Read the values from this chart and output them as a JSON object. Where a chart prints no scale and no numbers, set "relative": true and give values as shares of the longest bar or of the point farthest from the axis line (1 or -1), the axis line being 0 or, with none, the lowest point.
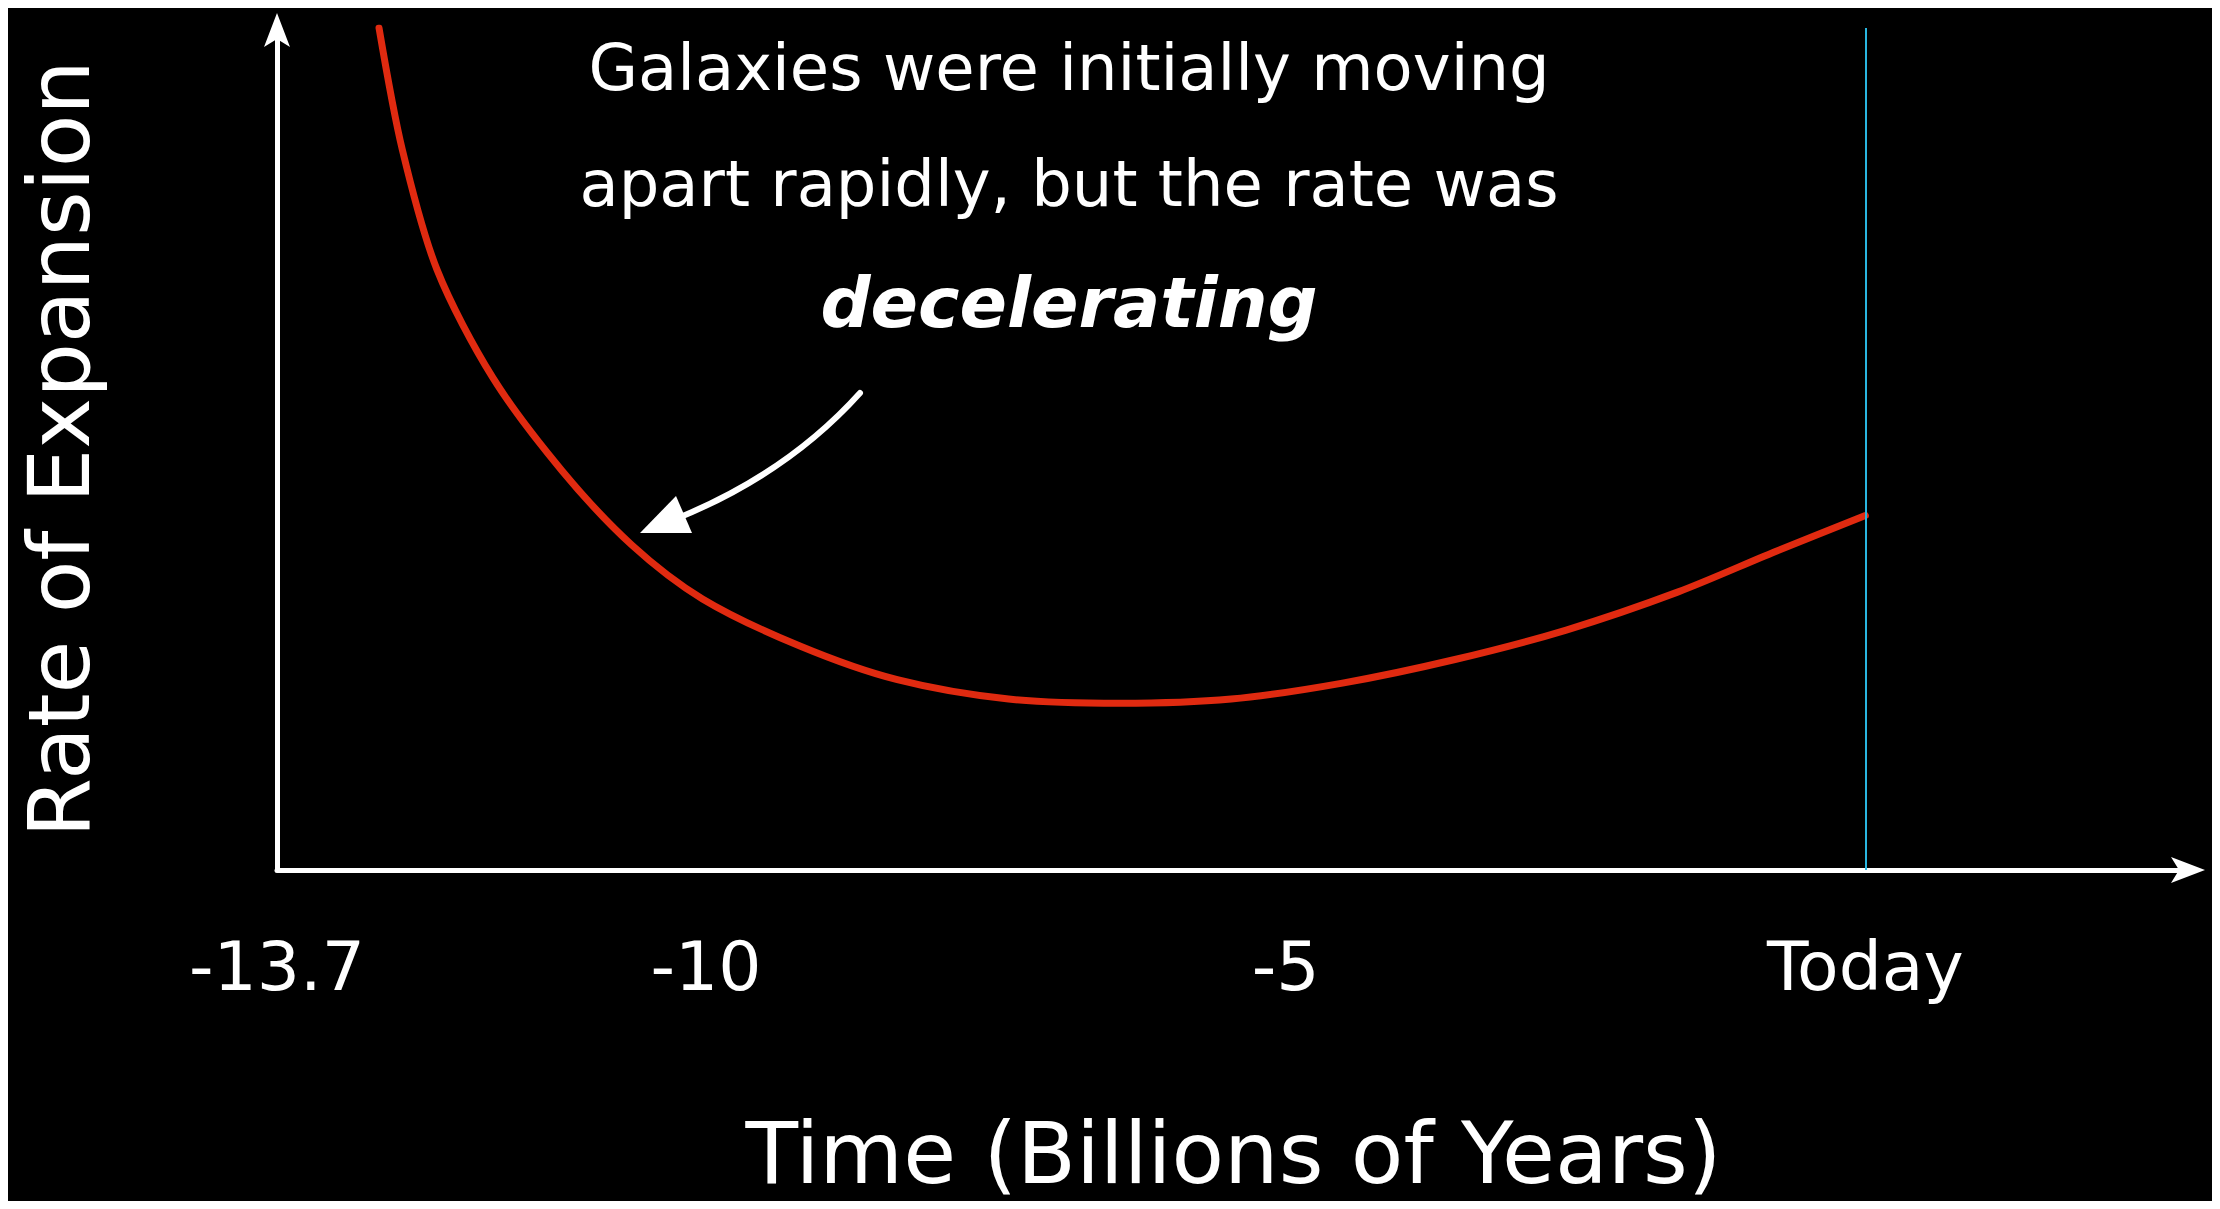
{
  "chart_data": {
    "type": "line",
    "relative": true,
    "xlabel": "Time (Billions of Years)",
    "ylabel": "Rate of Expansion",
    "annotations": [
      "Galaxies were initially moving",
      "apart rapidly, but the rate was",
      "decelerating"
    ],
    "xlim": [
      -13.7,
      2.8
    ],
    "xticks": [
      -13.7,
      -10,
      -5,
      {
        "value": 0,
        "label": "Today"
      }
    ],
    "ref_lines": [
      {
        "axis": "x",
        "value": 0,
        "color": "#29b6e0"
      }
    ],
    "marker": "none",
    "line_style": "solid",
    "series": [
      {
        "color": "#e02a10",
        "x": [
          -12.82,
          -12.62,
          -12.32,
          -11.84,
          -11.24,
          -10.64,
          -10.03,
          -9.19,
          -8.35,
          -7.39,
          -6.43,
          -5.47,
          -4.51,
          -3.54,
          -2.58,
          -1.62,
          -0.78,
          0
        ],
        "values": [
          1,
          0.856,
          0.713,
          0.585,
          0.474,
          0.386,
          0.322,
          0.266,
          0.226,
          0.203,
          0.198,
          0.203,
          0.222,
          0.25,
          0.285,
          0.33,
          0.378,
          0.421
        ]
      }
    ]
  }
}
